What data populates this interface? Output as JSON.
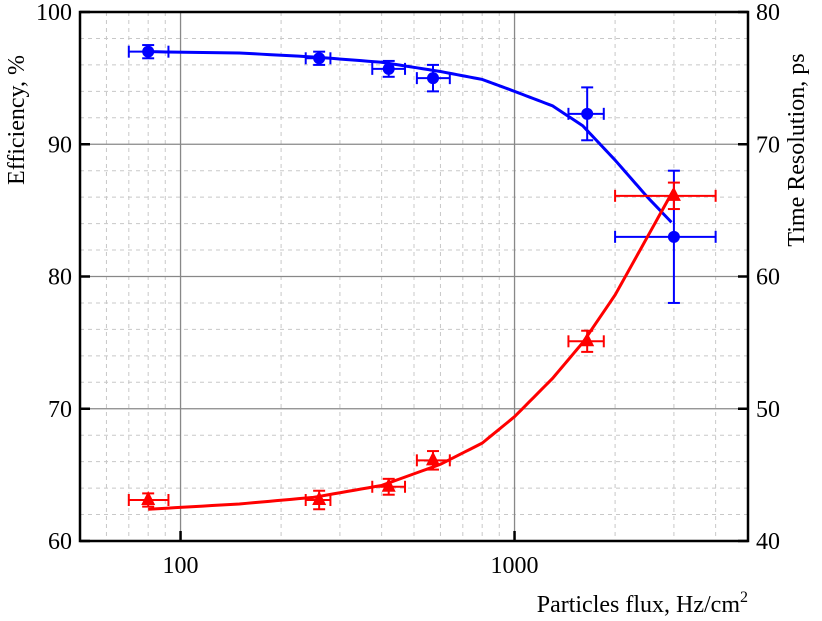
{
  "chart_data": {
    "type": "scatter",
    "xlabel": "Particles flux, Hz/cm",
    "xlabel_sup": "2",
    "ylabel_left": "Efficiency, %",
    "ylabel_right": "Time Resolution, ps",
    "xscale": "log",
    "xlim": [
      50,
      5000
    ],
    "ylim_left": [
      60,
      100
    ],
    "ylim_right": [
      40,
      80
    ],
    "x_ticks": [
      "100",
      "1000"
    ],
    "y_left_ticks": [
      "60",
      "70",
      "80",
      "90",
      "100"
    ],
    "y_right_ticks": [
      "40",
      "50",
      "60",
      "70",
      "80"
    ],
    "grid": "major solid, minor dashed",
    "legend": "none",
    "series": [
      {
        "axis": "left",
        "color": "#0000ff",
        "marker": "circle",
        "points": [
          {
            "x": 80,
            "xlo": 70,
            "xhi": 92,
            "y": 97.0,
            "yerr": 0.5
          },
          {
            "x": 260,
            "xlo": 237,
            "xhi": 281,
            "y": 96.5,
            "yerr": 0.5
          },
          {
            "x": 420,
            "xlo": 375,
            "xhi": 470,
            "y": 95.7,
            "yerr": 0.6
          },
          {
            "x": 570,
            "xlo": 510,
            "xhi": 640,
            "y": 95.0,
            "yerr": 1.0
          },
          {
            "x": 1650,
            "xlo": 1450,
            "xhi": 1850,
            "y": 92.3,
            "yerr": 2.0
          },
          {
            "x": 3000,
            "xlo": 2000,
            "xhi": 4000,
            "y": 83.0,
            "yerr": 5.0
          }
        ],
        "fit": [
          [
            80,
            97.0
          ],
          [
            150,
            96.9
          ],
          [
            250,
            96.6
          ],
          [
            400,
            96.2
          ],
          [
            600,
            95.5
          ],
          [
            800,
            94.9
          ],
          [
            1000,
            94.0
          ],
          [
            1300,
            92.9
          ],
          [
            1600,
            91.4
          ],
          [
            2000,
            88.8
          ],
          [
            2500,
            86.0
          ],
          [
            2950,
            84.1
          ]
        ]
      },
      {
        "axis": "right",
        "color": "#ff0000",
        "marker": "triangle",
        "points": [
          {
            "x": 80,
            "xlo": 70,
            "xhi": 92,
            "y": 43.1,
            "yerr": 0.5
          },
          {
            "x": 260,
            "xlo": 237,
            "xhi": 281,
            "y": 43.1,
            "yerr": 0.7
          },
          {
            "x": 420,
            "xlo": 375,
            "xhi": 470,
            "y": 44.1,
            "yerr": 0.6
          },
          {
            "x": 570,
            "xlo": 510,
            "xhi": 640,
            "y": 46.1,
            "yerr": 0.7
          },
          {
            "x": 1650,
            "xlo": 1450,
            "xhi": 1850,
            "y": 55.1,
            "yerr": 0.8
          },
          {
            "x": 3000,
            "xlo": 2000,
            "xhi": 4000,
            "y": 66.1,
            "yerr": 1.0
          }
        ],
        "fit": [
          [
            80,
            42.4
          ],
          [
            150,
            42.8
          ],
          [
            250,
            43.3
          ],
          [
            400,
            44.2
          ],
          [
            600,
            45.8
          ],
          [
            800,
            47.4
          ],
          [
            1000,
            49.4
          ],
          [
            1300,
            52.3
          ],
          [
            1600,
            55.0
          ],
          [
            2000,
            58.6
          ],
          [
            2500,
            63.0
          ],
          [
            3000,
            66.6
          ]
        ]
      }
    ]
  }
}
